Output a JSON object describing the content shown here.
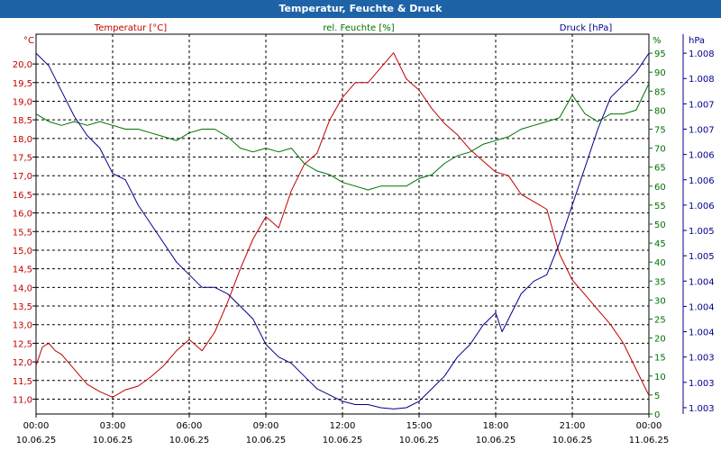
{
  "title": "Temperatur, Feuchte & Druck",
  "chart_data": {
    "type": "line",
    "x_labels": [
      {
        "time": "00:00",
        "date": "10.06.25"
      },
      {
        "time": "03:00",
        "date": "10.06.25"
      },
      {
        "time": "06:00",
        "date": "10.06.25"
      },
      {
        "time": "09:00",
        "date": "10.06.25"
      },
      {
        "time": "12:00",
        "date": "10.06.25"
      },
      {
        "time": "15:00",
        "date": "10.06.25"
      },
      {
        "time": "18:00",
        "date": "10.06.25"
      },
      {
        "time": "21:00",
        "date": "10.06.25"
      },
      {
        "time": "00:00",
        "date": "11.06.25"
      }
    ],
    "xlim": [
      0,
      24
    ],
    "grid": true,
    "axes": {
      "left": {
        "unit": "°C",
        "ylim": [
          10.6,
          20.8
        ],
        "ticks": [
          "11,0",
          "11,5",
          "12,0",
          "12,5",
          "13,0",
          "13,5",
          "14,0",
          "14,5",
          "15,0",
          "15,5",
          "16,0",
          "16,5",
          "17,0",
          "17,5",
          "18,0",
          "18,5",
          "19,0",
          "19,5",
          "20,0"
        ],
        "tick_values": [
          11.0,
          11.5,
          12.0,
          12.5,
          13.0,
          13.5,
          14.0,
          14.5,
          15.0,
          15.5,
          16.0,
          16.5,
          17.0,
          17.5,
          18.0,
          18.5,
          19.0,
          19.5,
          20.0
        ]
      },
      "middle": {
        "unit": "%",
        "ylim": [
          0,
          100
        ],
        "ticks": [
          "0",
          "5",
          "10",
          "15",
          "20",
          "25",
          "30",
          "35",
          "40",
          "45",
          "50",
          "55",
          "60",
          "65",
          "70",
          "75",
          "80",
          "85",
          "90",
          "95"
        ],
        "tick_values": [
          0,
          5,
          10,
          15,
          20,
          25,
          30,
          35,
          40,
          45,
          50,
          55,
          60,
          65,
          70,
          75,
          80,
          85,
          90,
          95
        ]
      },
      "right": {
        "unit": "hPa",
        "ylim": [
          1002.9,
          1008.9
        ],
        "ticks": [
          "1.003",
          "1.003",
          "1.003",
          "1.004",
          "1.004",
          "1.004",
          "1.005",
          "1.005",
          "1.006",
          "1.006",
          "1.006",
          "1.007",
          "1.007",
          "1.008",
          "1.008"
        ],
        "tick_values": [
          1003.0,
          1003.4,
          1003.8,
          1004.2,
          1004.6,
          1005.0,
          1005.4,
          1005.8,
          1006.2,
          1006.6,
          1007.0,
          1007.4,
          1007.8,
          1008.2,
          1008.6
        ]
      }
    },
    "series": [
      {
        "name": "Temperatur [°C]",
        "axis": "left",
        "color": "#c00000",
        "x": [
          0,
          0.25,
          0.5,
          0.75,
          1,
          1.5,
          2,
          2.5,
          3,
          3.5,
          4,
          4.5,
          5,
          5.5,
          6,
          6.5,
          7,
          7.5,
          8,
          8.5,
          9,
          9.5,
          10,
          10.5,
          11,
          11.5,
          12,
          12.5,
          13,
          13.5,
          14,
          14.5,
          15,
          15.5,
          16,
          16.5,
          17,
          17.5,
          18,
          18.5,
          19,
          19.5,
          20,
          20.5,
          21,
          21.5,
          22,
          22.5,
          23,
          23.5,
          24
        ],
        "values": [
          11.9,
          12.4,
          12.5,
          12.3,
          12.2,
          11.8,
          11.4,
          11.2,
          11.05,
          11.25,
          11.35,
          11.6,
          11.9,
          12.3,
          12.6,
          12.3,
          12.8,
          13.6,
          14.5,
          15.3,
          15.9,
          15.6,
          16.6,
          17.3,
          17.6,
          18.5,
          19.1,
          19.5,
          19.5,
          19.9,
          20.3,
          19.6,
          19.3,
          18.8,
          18.4,
          18.1,
          17.7,
          17.4,
          17.1,
          17.0,
          16.5,
          16.3,
          16.1,
          14.9,
          14.2,
          13.8,
          13.4,
          13.0,
          12.5,
          11.8,
          11.1
        ]
      },
      {
        "name": "rel. Feuchte [%]",
        "axis": "middle",
        "color": "#007000",
        "x": [
          0,
          0.5,
          1,
          1.5,
          2,
          2.5,
          3,
          3.5,
          4,
          4.5,
          5,
          5.5,
          6,
          6.5,
          7,
          7.5,
          8,
          8.5,
          9,
          9.5,
          10,
          10.5,
          11,
          11.5,
          12,
          12.5,
          13,
          13.5,
          14,
          14.5,
          15,
          15.5,
          16,
          16.5,
          17,
          17.5,
          18,
          18.5,
          19,
          19.5,
          20,
          20.5,
          21,
          21.5,
          22,
          22.5,
          23,
          23.5,
          24
        ],
        "values": [
          79,
          77,
          76,
          77,
          76,
          77,
          76,
          75,
          75,
          74,
          73,
          72,
          74,
          75,
          75,
          73,
          70,
          69,
          70,
          69,
          70,
          66,
          64,
          63,
          61,
          60,
          59,
          60,
          60,
          60,
          62,
          63,
          66,
          68,
          69,
          71,
          72,
          73,
          75,
          76,
          77,
          78,
          84,
          79,
          77,
          79,
          79,
          80,
          87
        ]
      },
      {
        "name": "Druck [hPa]",
        "axis": "right",
        "color": "#00008b",
        "x": [
          0,
          0.5,
          1,
          1.5,
          2,
          2.5,
          3,
          3.5,
          4,
          4.5,
          5,
          5.5,
          6,
          6.5,
          7,
          7.5,
          8,
          8.5,
          9,
          9.5,
          10,
          10.5,
          11,
          11.5,
          12,
          12.5,
          13,
          13.5,
          14,
          14.5,
          15,
          15.5,
          16,
          16.5,
          17,
          17.5,
          18,
          18.25,
          18.5,
          19,
          19.5,
          20,
          20.5,
          21,
          21.5,
          22,
          22.5,
          23,
          23.5,
          24
        ],
        "values": [
          1008.6,
          1008.4,
          1008.0,
          1007.6,
          1007.3,
          1007.1,
          1006.7,
          1006.6,
          1006.2,
          1005.9,
          1005.6,
          1005.3,
          1005.1,
          1004.9,
          1004.9,
          1004.8,
          1004.6,
          1004.4,
          1004.0,
          1003.8,
          1003.7,
          1003.5,
          1003.3,
          1003.2,
          1003.1,
          1003.05,
          1003.05,
          1003.0,
          1002.98,
          1003.0,
          1003.1,
          1003.3,
          1003.5,
          1003.8,
          1004.0,
          1004.3,
          1004.5,
          1004.2,
          1004.4,
          1004.8,
          1005.0,
          1005.1,
          1005.6,
          1006.2,
          1006.8,
          1007.4,
          1007.9,
          1008.1,
          1008.3,
          1008.6
        ]
      }
    ]
  }
}
